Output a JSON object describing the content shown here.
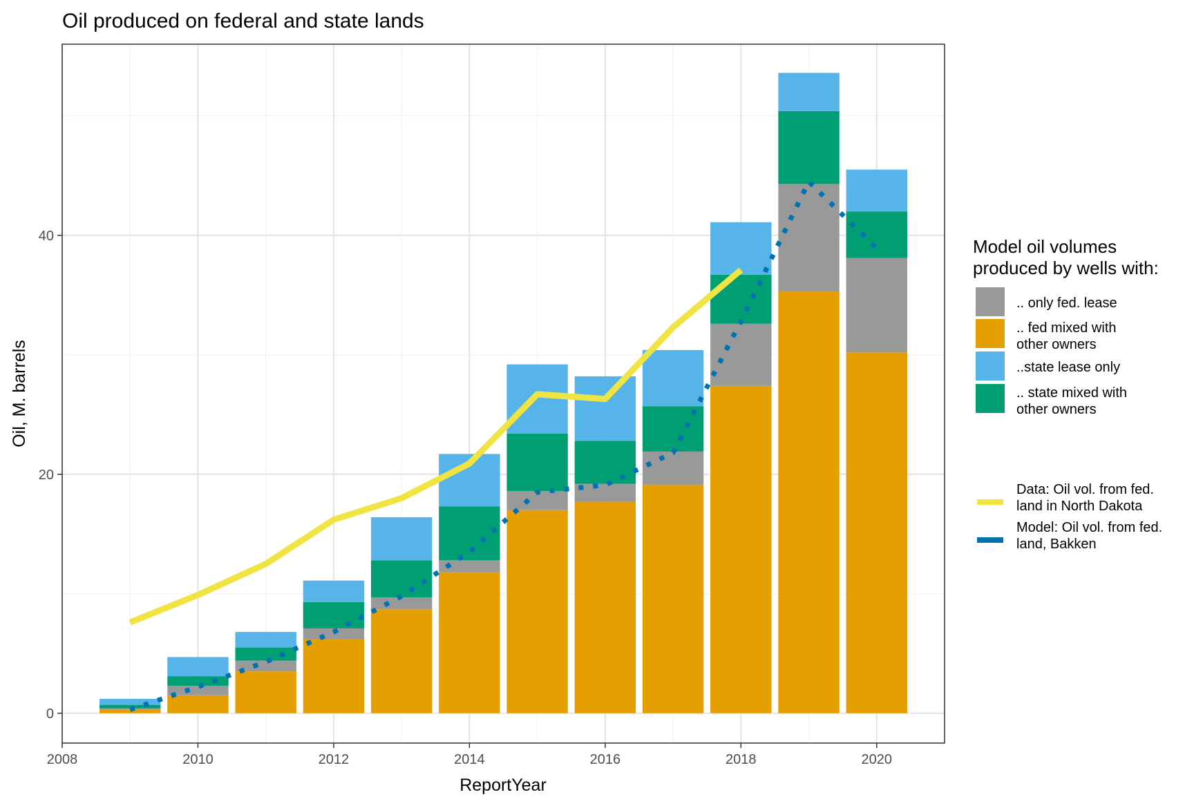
{
  "chart_data": {
    "type": "bar",
    "title": "Oil produced on federal and state lands",
    "xlabel": "ReportYear",
    "ylabel": "Oil, M. barrels",
    "xlim": [
      2008,
      2021
    ],
    "ylim": [
      -2.5,
      56
    ],
    "x_ticks": [
      2008,
      2010,
      2012,
      2014,
      2016,
      2018,
      2020
    ],
    "y_ticks": [
      0,
      20,
      40
    ],
    "grid": true,
    "legend_position": "right",
    "categories": [
      2009,
      2010,
      2011,
      2012,
      2013,
      2014,
      2015,
      2016,
      2017,
      2018,
      2019,
      2020
    ],
    "series": [
      {
        "name": ".. fed mixed with other owners",
        "color": "#E69F00",
        "values": [
          0.3,
          1.5,
          3.5,
          6.2,
          8.7,
          11.8,
          17.0,
          17.7,
          19.1,
          27.4,
          35.3,
          30.2
        ]
      },
      {
        "name": ".. only fed. lease",
        "color": "#999999",
        "values": [
          0.1,
          0.8,
          0.9,
          0.9,
          1.0,
          1.0,
          1.6,
          1.5,
          2.8,
          5.2,
          9.0,
          7.9
        ]
      },
      {
        "name": ".. state mixed with other owners",
        "color": "#009E73",
        "values": [
          0.3,
          0.8,
          1.1,
          2.2,
          3.1,
          4.5,
          4.8,
          3.6,
          3.8,
          4.1,
          6.1,
          3.9
        ]
      },
      {
        "name": "..state lease only",
        "color": "#56B4E9",
        "values": [
          0.5,
          1.6,
          1.3,
          1.8,
          3.6,
          4.4,
          5.8,
          5.4,
          4.7,
          4.4,
          3.2,
          3.5
        ]
      }
    ],
    "lines": [
      {
        "name": "Data: Oil vol. from fed.\n land in North Dakota",
        "color": "#F0E442",
        "style": "solid",
        "x": [
          2009,
          2010,
          2011,
          2012,
          2013,
          2014,
          2015,
          2016,
          2017,
          2018
        ],
        "y": [
          7.6,
          9.9,
          12.5,
          16.2,
          18.0,
          20.9,
          26.7,
          26.3,
          32.3,
          37.1
        ]
      },
      {
        "name": "Model: Oil vol. from fed.\nland, Bakken",
        "color": "#0072B2",
        "style": "dotted",
        "x": [
          2009,
          2010,
          2011,
          2012,
          2013,
          2014,
          2015,
          2016,
          2017,
          2018,
          2019,
          2020
        ],
        "y": [
          0.3,
          2.2,
          4.3,
          6.8,
          9.8,
          13.5,
          18.5,
          19.1,
          21.8,
          32.8,
          44.5,
          38.9
        ]
      }
    ],
    "legend": {
      "title_line1": "Model oil volumes",
      "title_line2": "produced by wells with:",
      "fill_items": [
        {
          "lines": [
            ".. only fed. lease"
          ],
          "color": "#999999"
        },
        {
          "lines": [
            ".. fed mixed with",
            "other owners"
          ],
          "color": "#E69F00"
        },
        {
          "lines": [
            "..state lease only"
          ],
          "color": "#56B4E9"
        },
        {
          "lines": [
            ".. state mixed with",
            "other owners"
          ],
          "color": "#009E73"
        }
      ],
      "line_items": [
        {
          "lines": [
            "Data: Oil vol. from fed.",
            " land in North Dakota"
          ],
          "color": "#F0E442"
        },
        {
          "lines": [
            "Model: Oil vol. from fed.",
            "land, Bakken"
          ],
          "color": "#0072B2"
        }
      ]
    }
  }
}
